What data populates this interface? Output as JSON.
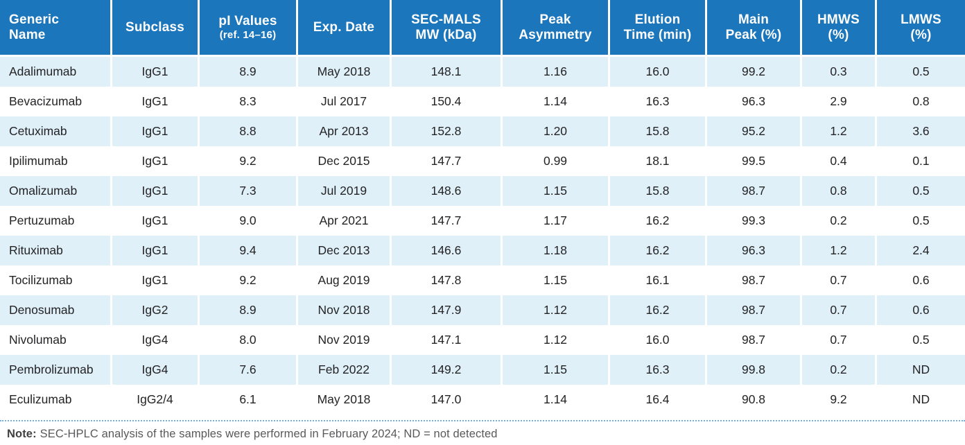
{
  "table": {
    "columns": [
      {
        "id": "generic-name",
        "lines": [
          "Generic",
          "Name"
        ]
      },
      {
        "id": "subclass",
        "lines": [
          "Subclass"
        ]
      },
      {
        "id": "pi-values",
        "lines": [
          "pI Values",
          "(ref. 14–16)"
        ],
        "small_line_index": 1
      },
      {
        "id": "exp-date",
        "lines": [
          "Exp. Date"
        ]
      },
      {
        "id": "sec-mals-mw",
        "lines": [
          "SEC-MALS",
          "MW (kDa)"
        ]
      },
      {
        "id": "peak-asymmetry",
        "lines": [
          "Peak",
          "Asymmetry"
        ]
      },
      {
        "id": "elution-time",
        "lines": [
          "Elution",
          "Time (min)"
        ]
      },
      {
        "id": "main-peak",
        "lines": [
          "Main",
          "Peak (%)"
        ]
      },
      {
        "id": "hmws",
        "lines": [
          "HMWS",
          "(%)"
        ]
      },
      {
        "id": "lmws",
        "lines": [
          "LMWS",
          "(%)"
        ]
      }
    ],
    "rows": [
      [
        "Adalimumab",
        "IgG1",
        "8.9",
        "May 2018",
        "148.1",
        "1.16",
        "16.0",
        "99.2",
        "0.3",
        "0.5"
      ],
      [
        "Bevacizumab",
        "IgG1",
        "8.3",
        "Jul 2017",
        "150.4",
        "1.14",
        "16.3",
        "96.3",
        "2.9",
        "0.8"
      ],
      [
        "Cetuximab",
        "IgG1",
        "8.8",
        "Apr 2013",
        "152.8",
        "1.20",
        "15.8",
        "95.2",
        "1.2",
        "3.6"
      ],
      [
        "Ipilimumab",
        "IgG1",
        "9.2",
        "Dec 2015",
        "147.7",
        "0.99",
        "18.1",
        "99.5",
        "0.4",
        "0.1"
      ],
      [
        "Omalizumab",
        "IgG1",
        "7.3",
        "Jul 2019",
        "148.6",
        "1.15",
        "15.8",
        "98.7",
        "0.8",
        "0.5"
      ],
      [
        "Pertuzumab",
        "IgG1",
        "9.0",
        "Apr 2021",
        "147.7",
        "1.17",
        "16.2",
        "99.3",
        "0.2",
        "0.5"
      ],
      [
        "Rituximab",
        "IgG1",
        "9.4",
        "Dec 2013",
        "146.6",
        "1.18",
        "16.2",
        "96.3",
        "1.2",
        "2.4"
      ],
      [
        "Tocilizumab",
        "IgG1",
        "9.2",
        "Aug 2019",
        "147.8",
        "1.15",
        "16.1",
        "98.7",
        "0.7",
        "0.6"
      ],
      [
        "Denosumab",
        "IgG2",
        "8.9",
        "Nov 2018",
        "147.9",
        "1.12",
        "16.2",
        "98.7",
        "0.7",
        "0.6"
      ],
      [
        "Nivolumab",
        "IgG4",
        "8.0",
        "Nov 2019",
        "147.1",
        "1.12",
        "16.0",
        "98.7",
        "0.7",
        "0.5"
      ],
      [
        "Pembrolizumab",
        "IgG4",
        "7.6",
        "Feb 2022",
        "149.2",
        "1.15",
        "16.3",
        "99.8",
        "0.2",
        "ND"
      ],
      [
        "Eculizumab",
        "IgG2/4",
        "6.1",
        "May 2018",
        "147.0",
        "1.14",
        "16.4",
        "90.8",
        "9.2",
        "ND"
      ]
    ]
  },
  "note": {
    "label": "Note:",
    "text": "SEC-HPLC analysis of the samples were performed in February 2024; ND = not detected"
  },
  "colors": {
    "header_bg": "#1C76BC",
    "row_alt_bg": "#DFF0F8",
    "dotted_line": "#74AEDC",
    "header_text": "#FFFFFF",
    "body_text": "#242325",
    "note_text": "#58595B"
  }
}
